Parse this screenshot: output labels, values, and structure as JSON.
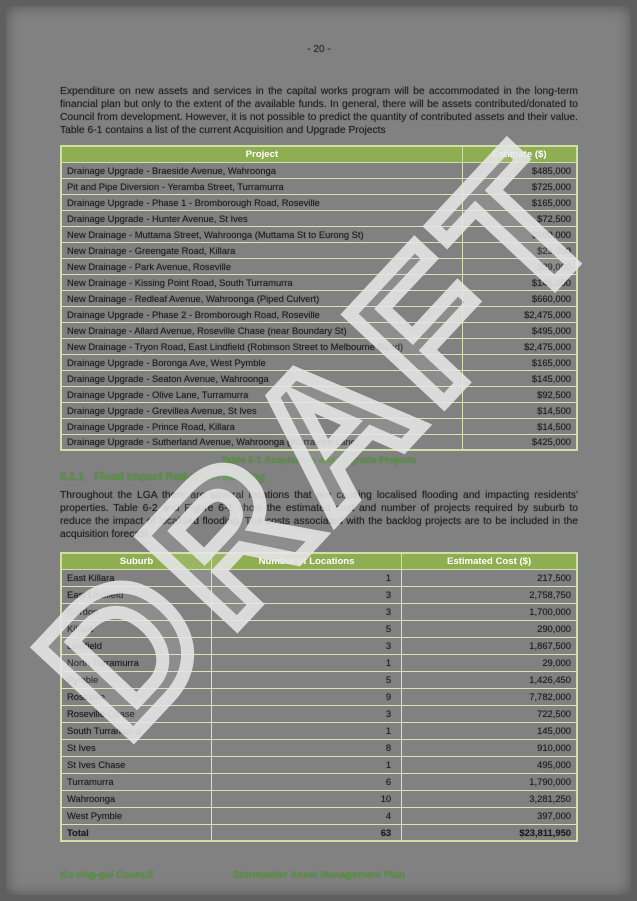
{
  "page": {
    "number_label": "- 20 -"
  },
  "watermark": "DRAFT",
  "colors": {
    "page_background": "#818181",
    "table_header_green": "#8fae51",
    "heading_green": "#55933c",
    "table_border": "#d7e3b5",
    "body_text": "#1f1f1f",
    "watermark_white": "#e6e6e6"
  },
  "intro_paragraph": "Expenditure on new assets and services in the capital works program will be accommodated in the long-term financial plan but only to the extent of the available funds. In general, there will be assets contributed/donated to Council from development. However, it is not possible to predict the quantity of contributed assets and their value. Table 6-1 contains a list of the current Acquisition and Upgrade Projects",
  "table1": {
    "headers": {
      "project": "Project",
      "estimate": "Estimate ($)"
    },
    "rows": [
      {
        "project": "Drainage Upgrade - Braeside Avenue, Wahroonga",
        "estimate": "$485,000"
      },
      {
        "project": "Pit and Pipe Diversion - Yeramba Street, Turramurra",
        "estimate": "$725,000"
      },
      {
        "project": "Drainage Upgrade - Phase 1 - Bromborough Road, Roseville",
        "estimate": "$165,000"
      },
      {
        "project": "Drainage Upgrade - Hunter Avenue, St Ives",
        "estimate": "$72,500"
      },
      {
        "project": "New Drainage - Muttama Street, Wahroonga (Muttama St to Eurong St)",
        "estimate": "$660,000"
      },
      {
        "project": "New Drainage - Greengate Road, Killara",
        "estimate": "$23,000"
      },
      {
        "project": "New Drainage - Park Avenue, Roseville",
        "estimate": "$29,000"
      },
      {
        "project": "New Drainage - Kissing Point Road, South Turramurra",
        "estimate": "$145,000"
      },
      {
        "project": "New Drainage - Redleaf Avenue, Wahroonga (Piped Culvert)",
        "estimate": "$660,000"
      },
      {
        "project": "Drainage Upgrade - Phase 2 - Bromborough Road, Roseville",
        "estimate": "$2,475,000"
      },
      {
        "project": "New Drainage - Allard Avenue, Roseville Chase (near Boundary St)",
        "estimate": "$495,000"
      },
      {
        "project": "New Drainage - Tryon Road, East Lindfield (Robinson Street to Melbourne Road)",
        "estimate": "$2,475,000"
      },
      {
        "project": "Drainage Upgrade - Boronga Ave, West Pymble",
        "estimate": "$165,000"
      },
      {
        "project": "Drainage Upgrade - Seaton Avenue, Wahroonga",
        "estimate": "$145,000"
      },
      {
        "project": "Drainage Upgrade - Olive Lane, Turramurra",
        "estimate": "$92,500"
      },
      {
        "project": "Drainage Upgrade - Grevillea Avenue, St Ives",
        "estimate": "$14,500"
      },
      {
        "project": "Drainage Upgrade - Prince Road, Killara",
        "estimate": "$14,500"
      },
      {
        "project": "Drainage Upgrade - Sutherland Avenue, Wahroonga (Warrawee Lane)",
        "estimate": "$425,000"
      }
    ],
    "caption": "Table 6-1 Acquisition and Upgrade Projects"
  },
  "section": {
    "number": "6.1.1",
    "title": "Flood Impact Reduction Backlog"
  },
  "body_paragraph": "Throughout the LGA there are several locations that are causing localised flooding and impacting residents' properties. Table 6-2 and Figure 6-1 show the estimated cost and number of projects required by suburb to reduce the impact of localised flooding. The costs associated with the backlog projects are to be included in the acquisition forecast.",
  "table2": {
    "headers": {
      "suburb": "Suburb",
      "locations": "Number of Locations",
      "cost": "Estimated Cost ($)"
    },
    "rows": [
      {
        "suburb": "East Killara",
        "locations": "1",
        "cost": "217,500"
      },
      {
        "suburb": "East Lindfield",
        "locations": "3",
        "cost": "2,758,750"
      },
      {
        "suburb": "Gordon",
        "locations": "3",
        "cost": "1,700,000"
      },
      {
        "suburb": "Killara",
        "locations": "5",
        "cost": "290,000"
      },
      {
        "suburb": "Lindfield",
        "locations": "3",
        "cost": "1,867,500"
      },
      {
        "suburb": "North Turramurra",
        "locations": "1",
        "cost": "29,000"
      },
      {
        "suburb": "Pymble",
        "locations": "5",
        "cost": "1,426,450"
      },
      {
        "suburb": "Roseville",
        "locations": "9",
        "cost": "7,782,000"
      },
      {
        "suburb": "Roseville Chase",
        "locations": "3",
        "cost": "722,500"
      },
      {
        "suburb": "South Turramurra",
        "locations": "1",
        "cost": "145,000"
      },
      {
        "suburb": "St Ives",
        "locations": "8",
        "cost": "910,000"
      },
      {
        "suburb": "St Ives Chase",
        "locations": "1",
        "cost": "495,000"
      },
      {
        "suburb": "Turramurra",
        "locations": "6",
        "cost": "1,790,000"
      },
      {
        "suburb": "Wahroonga",
        "locations": "10",
        "cost": "3,281,250"
      },
      {
        "suburb": "West Pymble",
        "locations": "4",
        "cost": "397,000"
      }
    ],
    "total": {
      "suburb": "Total",
      "locations": "63",
      "cost": "$23,811,950"
    }
  },
  "footer": {
    "left": "Ku-ring-gai Council",
    "center": "Stormwater Asset Management Plan"
  }
}
